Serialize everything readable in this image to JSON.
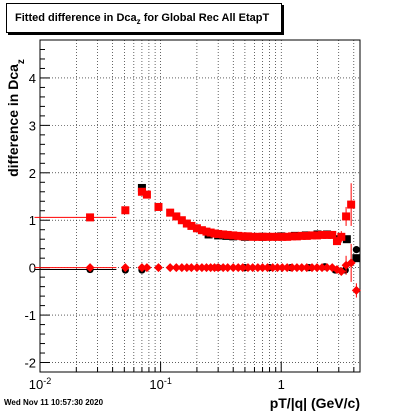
{
  "title": {
    "main": "Fitted difference in Dca",
    "sub": "z",
    "tail": " for Global Rec All EtapT"
  },
  "footer": "Wed Nov 11 10:57:30 2020",
  "chart_data": {
    "type": "scatter",
    "title": "Fitted difference in Dca_z for Global Rec All EtapT",
    "xlabel": "pT/|q| (GeV/c)",
    "ylabel": "difference in Dca_z",
    "xscale": "log",
    "xlim": [
      0.01,
      4.5
    ],
    "ylim": [
      -2.2,
      4.8
    ],
    "grid": true,
    "x_ticks": [
      {
        "value": 0.01,
        "label": "10",
        "sup": "-2"
      },
      {
        "value": 0.1,
        "label": "10",
        "sup": "-1"
      },
      {
        "value": 1,
        "label": "1",
        "sup": ""
      }
    ],
    "y_ticks": [
      -2,
      -1,
      0,
      1,
      2,
      3,
      4
    ],
    "colors": {
      "mean_black": "#000000",
      "mean_red": "#ff0000",
      "sigma_red": "#ff0000",
      "sigma_black": "#000000"
    },
    "series": [
      {
        "marker": "square",
        "color": "#000000",
        "x": [
          0.07,
          0.25,
          0.3,
          0.35,
          0.4,
          0.5,
          0.7,
          1.0,
          1.3,
          1.6,
          2.0,
          2.4,
          2.9,
          3.5,
          4.2
        ],
        "y": [
          1.68,
          0.7,
          0.68,
          0.67,
          0.66,
          0.65,
          0.65,
          0.66,
          0.67,
          0.68,
          0.7,
          0.7,
          0.6,
          0.6,
          0.2
        ]
      },
      {
        "marker": "square",
        "color": "#ff0000",
        "x": [
          0.026,
          0.051,
          0.07,
          0.077,
          0.096,
          0.12,
          0.135,
          0.15,
          0.165,
          0.18,
          0.2,
          0.22,
          0.24,
          0.26,
          0.28,
          0.3,
          0.33,
          0.36,
          0.4,
          0.44,
          0.48,
          0.53,
          0.58,
          0.64,
          0.7,
          0.77,
          0.85,
          0.93,
          1.02,
          1.12,
          1.23,
          1.35,
          1.48,
          1.63,
          1.8,
          1.98,
          2.18,
          2.4,
          2.65,
          2.9,
          3.15,
          3.45,
          3.8
        ],
        "y": [
          1.06,
          1.21,
          1.6,
          1.54,
          1.28,
          1.16,
          1.08,
          1.0,
          0.93,
          0.88,
          0.83,
          0.79,
          0.76,
          0.74,
          0.72,
          0.71,
          0.7,
          0.69,
          0.68,
          0.67,
          0.66,
          0.66,
          0.65,
          0.65,
          0.65,
          0.65,
          0.65,
          0.65,
          0.65,
          0.65,
          0.66,
          0.66,
          0.67,
          0.67,
          0.68,
          0.68,
          0.69,
          0.69,
          0.69,
          0.56,
          0.65,
          1.08,
          1.33
        ],
        "ex_lo": [
          0.017,
          0.0,
          0.0,
          0.0,
          0.0,
          0.0,
          0.0,
          0.0,
          0.0,
          0.0,
          0.0,
          0.0,
          0.0,
          0.0,
          0.0,
          0.0,
          0.0,
          0.0,
          0.0,
          0.0,
          0.0,
          0.0,
          0.0,
          0.0,
          0.0,
          0.0,
          0.0,
          0.0,
          0.0,
          0.0,
          0.0,
          0.0,
          0.0,
          0.0,
          0.0,
          0.0,
          0.0,
          0.0,
          0.0,
          0.0,
          0.0,
          0.0,
          0.0
        ],
        "ey": [
          0,
          0,
          0,
          0,
          0,
          0,
          0,
          0,
          0,
          0,
          0,
          0,
          0,
          0,
          0,
          0,
          0,
          0,
          0,
          0,
          0,
          0,
          0,
          0,
          0,
          0,
          0,
          0,
          0,
          0,
          0,
          0,
          0,
          0,
          0,
          0,
          0,
          0,
          0,
          0,
          0.12,
          0.2,
          0.45
        ]
      },
      {
        "marker": "circle",
        "color": "#000000",
        "x": [
          0.026,
          0.051,
          0.07,
          0.3,
          0.5,
          0.8,
          1.2,
          1.7,
          2.3,
          2.8,
          3.4,
          4.2
        ],
        "y": [
          -0.04,
          -0.05,
          -0.05,
          0.0,
          0.0,
          0.0,
          0.0,
          0.0,
          0.02,
          -0.05,
          -0.05,
          0.38
        ],
        "ex_lo": [
          0.017,
          0,
          0,
          0,
          0,
          0,
          0,
          0,
          0,
          0,
          0,
          0
        ]
      },
      {
        "marker": "diamond",
        "color": "#ff0000",
        "x": [
          0.026,
          0.051,
          0.07,
          0.077,
          0.096,
          0.12,
          0.135,
          0.15,
          0.165,
          0.18,
          0.2,
          0.22,
          0.24,
          0.26,
          0.28,
          0.3,
          0.33,
          0.36,
          0.4,
          0.44,
          0.48,
          0.53,
          0.58,
          0.64,
          0.7,
          0.77,
          0.85,
          0.93,
          1.02,
          1.12,
          1.23,
          1.35,
          1.48,
          1.63,
          1.8,
          1.98,
          2.18,
          2.4,
          2.65,
          2.9,
          3.15,
          3.45,
          3.8,
          4.2
        ],
        "y": [
          0.0,
          0.0,
          0.0,
          0.0,
          0.0,
          0.0,
          0.0,
          0.0,
          0.0,
          0.0,
          0.0,
          0.0,
          0.0,
          0.0,
          0.0,
          0.0,
          0.0,
          0.0,
          0.0,
          0.0,
          0.0,
          0.0,
          0.0,
          0.0,
          0.0,
          0.0,
          0.0,
          0.0,
          0.0,
          0.0,
          0.0,
          0.0,
          0.0,
          0.0,
          0.0,
          0.0,
          0.0,
          0.0,
          0.0,
          -0.04,
          -0.08,
          0.05,
          0.1,
          -0.48
        ],
        "ex_lo": [
          0.017,
          0,
          0,
          0,
          0,
          0,
          0,
          0,
          0,
          0,
          0,
          0,
          0,
          0,
          0,
          0,
          0,
          0,
          0,
          0,
          0,
          0,
          0,
          0,
          0,
          0,
          0,
          0,
          0,
          0,
          0,
          0,
          0,
          0,
          0,
          0,
          0,
          0,
          0,
          0,
          0,
          0,
          0,
          0
        ],
        "ey": [
          0,
          0,
          0,
          0,
          0,
          0,
          0,
          0,
          0,
          0,
          0,
          0,
          0,
          0,
          0,
          0,
          0,
          0,
          0,
          0,
          0,
          0,
          0,
          0,
          0,
          0,
          0,
          0,
          0,
          0,
          0,
          0,
          0,
          0,
          0,
          0,
          0,
          0,
          0,
          0.05,
          0.08,
          0.2,
          0.4,
          0.15
        ]
      }
    ]
  }
}
